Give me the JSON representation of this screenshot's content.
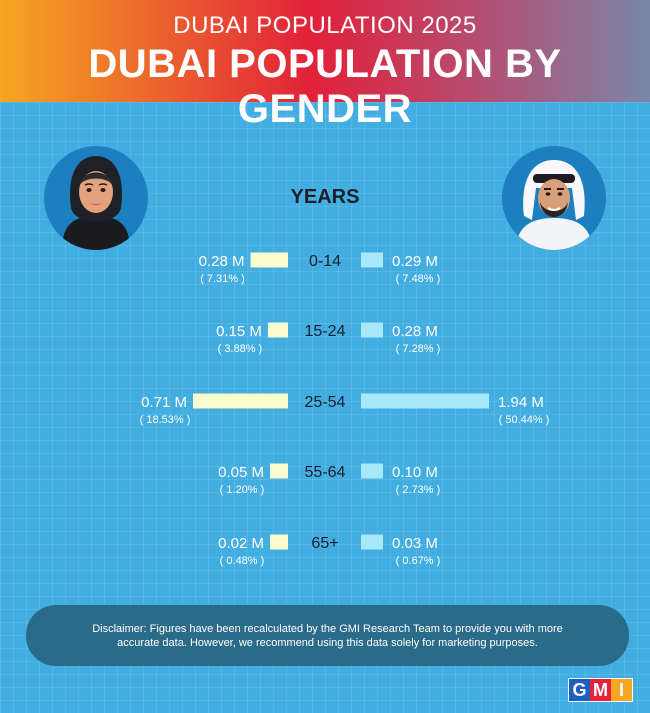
{
  "header": {
    "subtitle": "DUBAI POPULATION 2025",
    "title": "DUBAI POPULATION BY GENDER"
  },
  "chart_data": {
    "type": "bar",
    "title": "DUBAI POPULATION BY GENDER",
    "axis_label": "YEARS",
    "categories": [
      "0-14",
      "15-24",
      "25-54",
      "55-64",
      "65+"
    ],
    "series": [
      {
        "name": "Female",
        "color": "#fbfbd0",
        "values": [
          0.28,
          0.15,
          0.71,
          0.05,
          0.02
        ],
        "value_labels": [
          "0.28 M",
          "0.15 M",
          "0.71 M",
          "0.05 M",
          "0.02 M"
        ],
        "percent_labels": [
          "( 7.31% )",
          "( 3.88% )",
          "( 18.53% )",
          "( 1.20% )",
          "( 0.48% )"
        ]
      },
      {
        "name": "Male",
        "color": "#a8e8fb",
        "values": [
          0.29,
          0.28,
          1.94,
          0.1,
          0.03
        ],
        "value_labels": [
          "0.29 M",
          "0.28 M",
          "1.94 M",
          "0.10 M",
          "0.03 M"
        ],
        "percent_labels": [
          "( 7.48% )",
          "( 7.28% )",
          "( 50.44% )",
          "( 2.73% )",
          "( 0.67% )"
        ]
      }
    ]
  },
  "disclaimer": "Disclaimer: Figures have been recalculated by the GMI Research Team to provide you with more accurate data. However, we recommend using this data solely for marketing purposes.",
  "logo": {
    "letters": [
      "G",
      "M",
      "I"
    ],
    "colors": [
      "#1f5fbf",
      "#e6213a",
      "#f5a623"
    ]
  }
}
